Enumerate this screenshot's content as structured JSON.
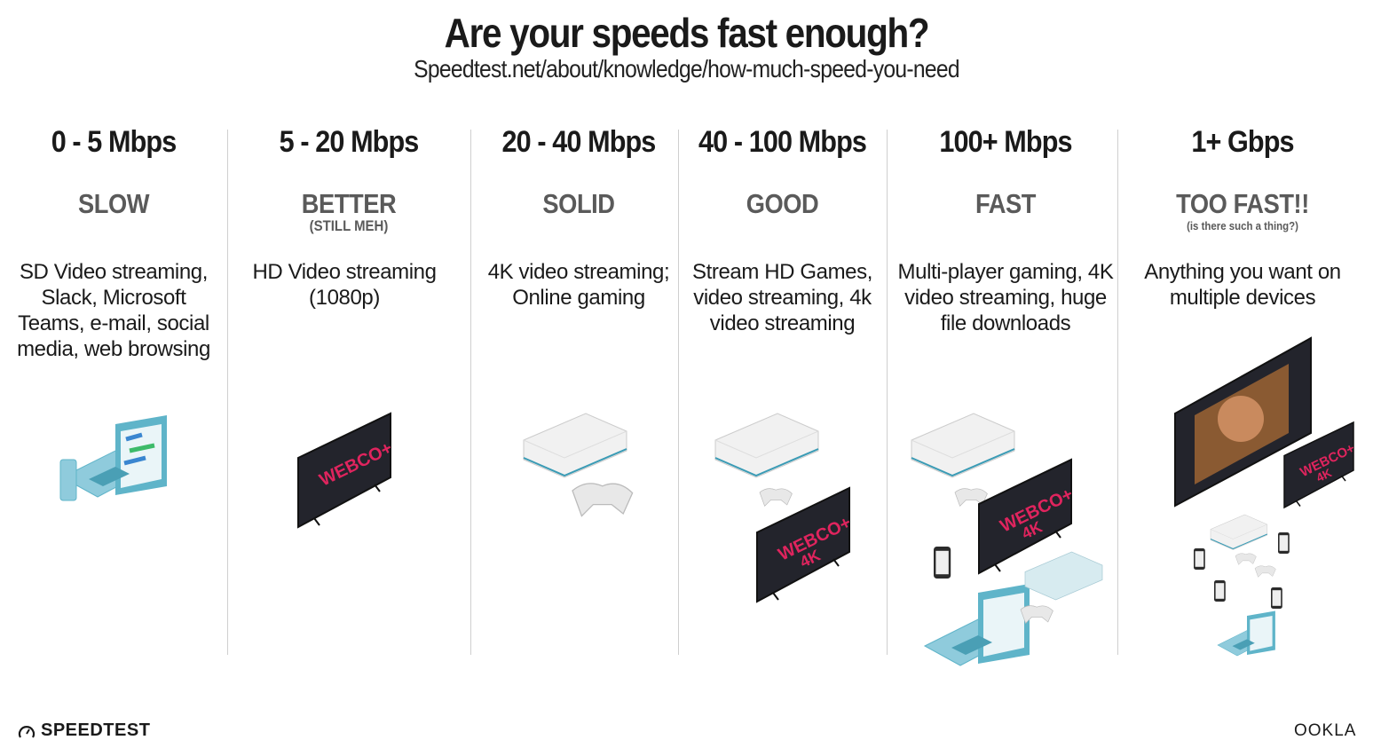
{
  "header": {
    "title": "Are your speeds fast enough?",
    "subtitle": "Speedtest.net/about/knowledge/how-much-speed-you-need"
  },
  "tiers": [
    {
      "speed": "0 - 5 Mbps",
      "rating": "SLOW",
      "note": "",
      "description": "SD Video streaming, Slack, Microsoft Teams, e-mail, social media, web browsing",
      "devices": [
        "laptop",
        "phone"
      ]
    },
    {
      "speed": "5 - 20 Mbps",
      "rating": "BETTER",
      "note": "(STILL MEH)",
      "description": "HD Video streaming (1080p)",
      "devices": [
        "tv"
      ]
    },
    {
      "speed": "20 - 40 Mbps",
      "rating": "SOLID",
      "note": "",
      "description": "4K video streaming; Online gaming",
      "devices": [
        "game-console",
        "controller"
      ]
    },
    {
      "speed": "40 - 100 Mbps",
      "rating": "GOOD",
      "note": "",
      "description": "Stream HD Games, video streaming, 4k video streaming",
      "devices": [
        "game-console",
        "controller",
        "tv-4k"
      ]
    },
    {
      "speed": "100+ Mbps",
      "rating": "FAST",
      "note": "",
      "description": "Multi-player gaming, 4K video streaming, huge file downloads",
      "devices": [
        "game-console",
        "controller",
        "tv-4k",
        "phone",
        "laptop",
        "game-console"
      ]
    },
    {
      "speed": "1+ Gbps",
      "rating": "TOO FAST!!",
      "note": "(is there such a thing?)",
      "description": "Anything you want on multiple devices",
      "devices": [
        "tv",
        "tv-4k",
        "game-console",
        "phone",
        "laptop"
      ]
    }
  ],
  "tv_branding": {
    "brand": "WEBCO+",
    "uhd": "4K",
    "console": "webcostation"
  },
  "footer": {
    "left_logo": "SPEEDTEST",
    "right_logo": "OOKLA"
  },
  "colors": {
    "text": "#1a1a1a",
    "rating": "#5a5a5a",
    "divider": "#cfcfcf",
    "tv_logo": "#e0245e",
    "device_teal": "#5fb4c9"
  }
}
